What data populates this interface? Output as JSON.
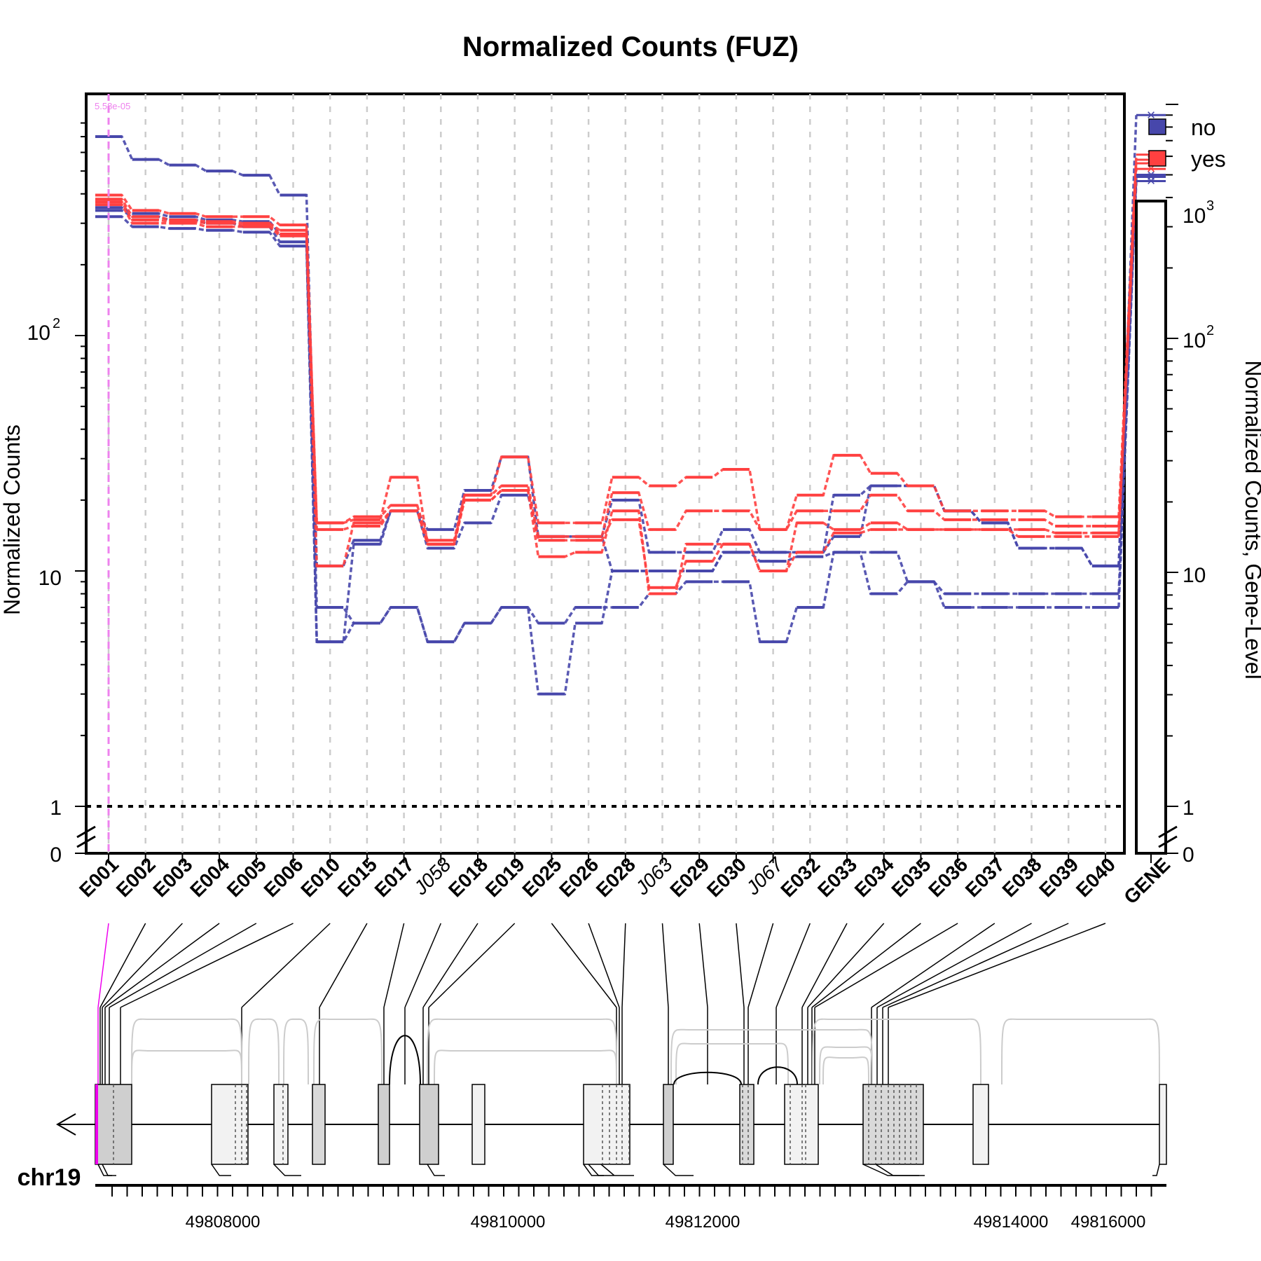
{
  "chart_data": {
    "type": "line",
    "title": "Normalized Counts (FUZ)",
    "ylabel": "Normalized Counts",
    "ylabel_right": "Normalized Counts, Gene-Level",
    "y_scale": "log",
    "y_ticks": [
      "0",
      "1",
      "10"
    ],
    "y_tick_102": {
      "base": "10",
      "exp": "2"
    },
    "y_right_ticks": [
      "0",
      "1"
    ],
    "y_right_tick_10": "10",
    "y_right_tick_102": {
      "base": "10",
      "exp": "2"
    },
    "y_right_tick_103": {
      "base": "10",
      "exp": "3"
    },
    "annotation": "5.58e-05",
    "legend": {
      "placement": "top-right",
      "entries": [
        {
          "label": "no",
          "color": "#4747AB"
        },
        {
          "label": "yes",
          "color": "#FF4040"
        }
      ]
    },
    "features": [
      "E001",
      "E002",
      "E003",
      "E004",
      "E005",
      "E006",
      "E010",
      "E015",
      "E017",
      "J058",
      "E018",
      "E019",
      "E025",
      "E026",
      "E028",
      "J063",
      "E029",
      "E030",
      "J067",
      "E032",
      "E033",
      "E034",
      "E035",
      "E036",
      "E037",
      "E038",
      "E039",
      "E040"
    ],
    "italic_features": [
      "J058",
      "J063",
      "J067"
    ],
    "gene_label": "GENE",
    "series": [
      {
        "group": "no",
        "color": "#4747AB",
        "values": [
          700,
          560,
          530,
          500,
          480,
          395,
          10.5,
          13.5,
          18,
          15,
          22,
          30.5,
          14,
          14,
          20,
          12,
          12,
          15,
          12,
          12,
          21,
          23,
          23,
          18,
          16,
          12.5,
          12.5,
          10.5
        ],
        "gene": 900
      },
      {
        "group": "no",
        "color": "#4747AB",
        "values": [
          340,
          320,
          310,
          300,
          290,
          250,
          7,
          6,
          7,
          5,
          6,
          7,
          3,
          6,
          10,
          10,
          10,
          12,
          12,
          12,
          14,
          23,
          23,
          18,
          16,
          12.5,
          12.5,
          10.5
        ],
        "gene": 490
      },
      {
        "group": "no",
        "color": "#4747AB",
        "values": [
          320,
          290,
          285,
          280,
          275,
          240,
          5,
          6,
          7,
          5,
          6,
          7,
          6,
          7,
          7,
          8,
          9,
          9,
          5,
          7,
          12,
          12,
          9,
          7,
          7,
          7,
          7,
          7
        ],
        "gene": 500
      },
      {
        "group": "no",
        "color": "#4747AB",
        "values": [
          350,
          330,
          320,
          310,
          305,
          270,
          5,
          13,
          18,
          12.5,
          16,
          21,
          14,
          14,
          10,
          10,
          10,
          12,
          11,
          11.5,
          12,
          8,
          9,
          8,
          8,
          8,
          8,
          8
        ],
        "gene": 470
      },
      {
        "group": "yes",
        "color": "#FF4040",
        "values": [
          395,
          340,
          330,
          320,
          320,
          295,
          16,
          16.5,
          25,
          13,
          21,
          30.5,
          16,
          16,
          25,
          23,
          25,
          27,
          15,
          21,
          31,
          26,
          23,
          18,
          18,
          18,
          17,
          17
        ],
        "gene": 610
      },
      {
        "group": "yes",
        "color": "#FF4040",
        "values": [
          380,
          320,
          310,
          305,
          300,
          280,
          16,
          17,
          19,
          13.5,
          21,
          23,
          14,
          14,
          21.5,
          15,
          18,
          18,
          15,
          18,
          18,
          21,
          18,
          16.5,
          16.5,
          16.5,
          15.5,
          15.5
        ],
        "gene": 560
      },
      {
        "group": "yes",
        "color": "#FF4040",
        "values": [
          370,
          310,
          305,
          300,
          295,
          270,
          10.5,
          16,
          18,
          13,
          20,
          22,
          11.5,
          12,
          18,
          8,
          13,
          13,
          10,
          12,
          14.5,
          15,
          15,
          15,
          15,
          15,
          14.5,
          14.5
        ],
        "gene": 530
      },
      {
        "group": "yes",
        "color": "#FF4040",
        "values": [
          360,
          300,
          300,
          290,
          290,
          265,
          15,
          15.5,
          18,
          13,
          20,
          22,
          13.5,
          13.5,
          16.5,
          8.5,
          11,
          13,
          10,
          16,
          15,
          16,
          15,
          15,
          15,
          14,
          14,
          14
        ],
        "gene": 580
      }
    ],
    "genome": {
      "chromosome": "chr19",
      "position_labels": [
        "49808000",
        "49810000",
        "49812000",
        "49814000",
        "49816000"
      ]
    }
  }
}
